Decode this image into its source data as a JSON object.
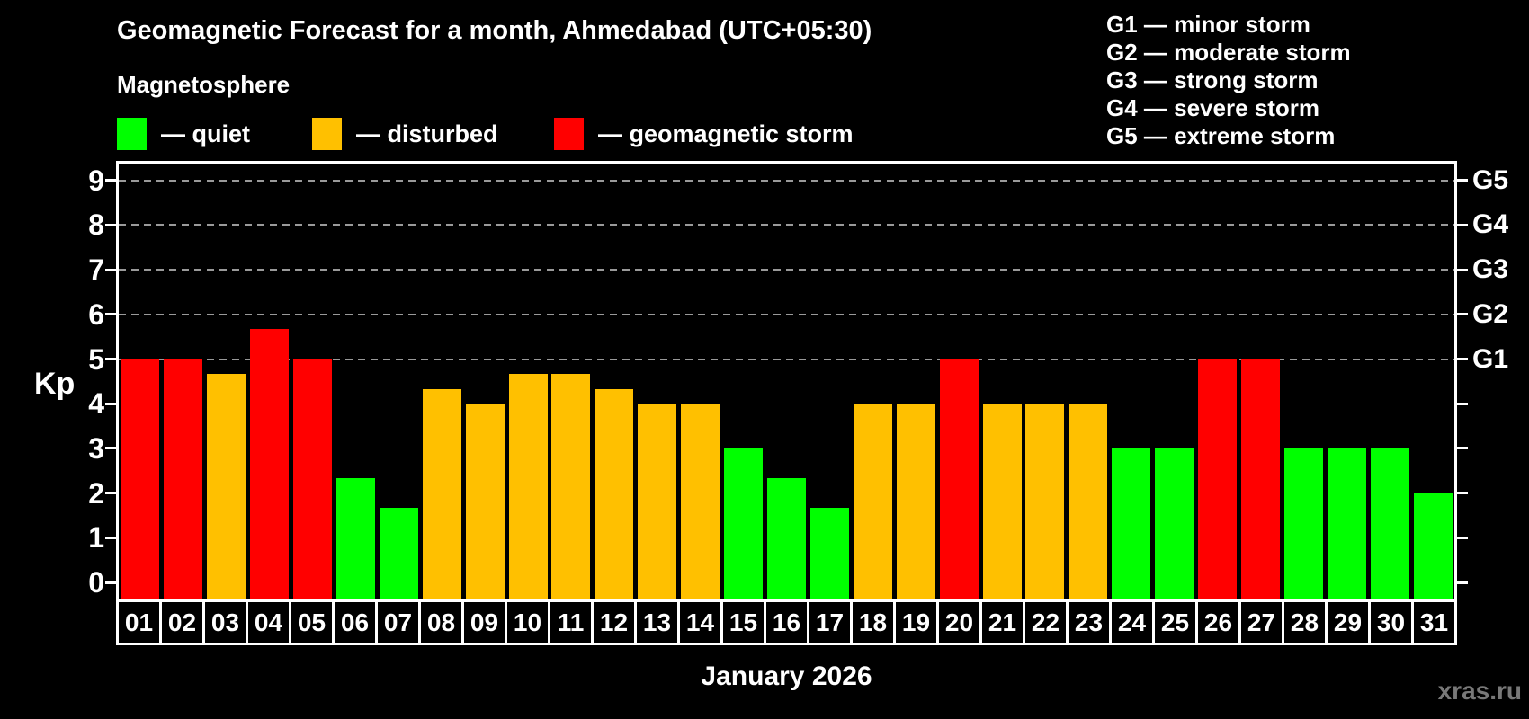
{
  "header": {
    "title": "Geomagnetic Forecast for a month, Ahmedabad (UTC+05:30)",
    "subtitle": "Magnetosphere"
  },
  "status_legend": [
    {
      "status": "quiet",
      "label": "— quiet",
      "color": "#00ff00",
      "x": 130
    },
    {
      "status": "disturbed",
      "label": "— disturbed",
      "color": "#ffc000",
      "x": 347
    },
    {
      "status": "storm",
      "label": "— geomagnetic storm",
      "color": "#ff0000",
      "x": 616
    }
  ],
  "g_scale_legend": [
    "G1 — minor storm",
    "G2 — moderate storm",
    "G3 — strong storm",
    "G4 — severe storm",
    "G5 — extreme storm"
  ],
  "watermark": "xras.ru",
  "chart_data": {
    "type": "bar",
    "title": "Geomagnetic Forecast for a month, Ahmedabad (UTC+05:30)",
    "xlabel": "January 2026",
    "ylabel": "Kp",
    "ylim": [
      -0.4,
      9.55
    ],
    "y_ticks": [
      0,
      1,
      2,
      3,
      4,
      5,
      6,
      7,
      8,
      9
    ],
    "gridlines_kp": [
      5,
      6,
      7,
      8,
      9
    ],
    "grid": "dashed horizontal at storm levels",
    "legend_position": "top-left",
    "right_axis_labels": [
      {
        "label": "G1",
        "kp": 5
      },
      {
        "label": "G2",
        "kp": 6
      },
      {
        "label": "G3",
        "kp": 7
      },
      {
        "label": "G4",
        "kp": 8
      },
      {
        "label": "G5",
        "kp": 9
      }
    ],
    "categories": [
      "01",
      "02",
      "03",
      "04",
      "05",
      "06",
      "07",
      "08",
      "09",
      "10",
      "11",
      "12",
      "13",
      "14",
      "15",
      "16",
      "17",
      "18",
      "19",
      "20",
      "21",
      "22",
      "23",
      "24",
      "25",
      "26",
      "27",
      "28",
      "29",
      "30",
      "31"
    ],
    "values": [
      5,
      5,
      4.67,
      5.67,
      5,
      2.33,
      1.67,
      4.33,
      4,
      4.67,
      4.67,
      4.33,
      4,
      4,
      3,
      2.33,
      1.67,
      4,
      4,
      5,
      4,
      4,
      4,
      3,
      3,
      5,
      5,
      3,
      3,
      3,
      2
    ],
    "statuses": [
      "storm",
      "storm",
      "disturbed",
      "storm",
      "storm",
      "quiet",
      "quiet",
      "disturbed",
      "disturbed",
      "disturbed",
      "disturbed",
      "disturbed",
      "disturbed",
      "disturbed",
      "quiet",
      "quiet",
      "quiet",
      "disturbed",
      "disturbed",
      "storm",
      "disturbed",
      "disturbed",
      "disturbed",
      "quiet",
      "quiet",
      "storm",
      "storm",
      "quiet",
      "quiet",
      "quiet",
      "quiet"
    ],
    "status_colors": {
      "quiet": "#00ff00",
      "disturbed": "#ffc000",
      "storm": "#ff0000"
    }
  }
}
